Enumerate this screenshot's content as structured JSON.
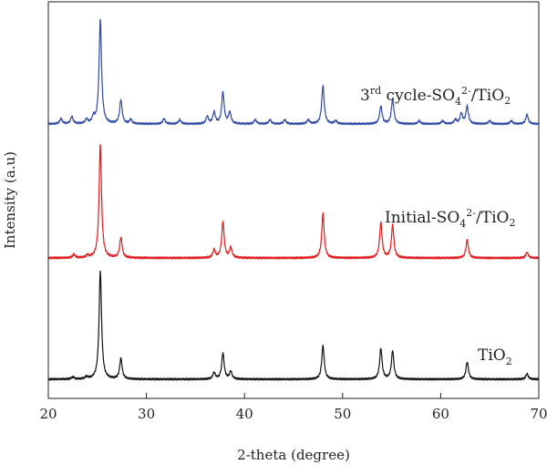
{
  "chart_data": {
    "type": "line",
    "title": "",
    "xlabel": "2-theta (degree)",
    "ylabel": "Intensity (a.u)",
    "xlim": [
      20,
      70
    ],
    "x_ticks": [
      20,
      30,
      40,
      50,
      60,
      70
    ],
    "y_ticks": [],
    "grid": false,
    "legend": "none",
    "peak_half_width_deg": 0.15,
    "series": [
      {
        "key": "third_cycle",
        "label_parts": {
          "pre": "3",
          "sup1": "rd",
          "mid": " cycle-SO",
          "sub1": "4",
          "sup2": "2-",
          "post": "/TiO",
          "sub2": "2"
        },
        "color": "#2e4aa5",
        "baseline": 2.0,
        "peaks": [
          {
            "x": 21.3,
            "h": 0.05
          },
          {
            "x": 22.4,
            "h": 0.07
          },
          {
            "x": 23.9,
            "h": 0.04
          },
          {
            "x": 24.6,
            "h": 0.06
          },
          {
            "x": 25.3,
            "h": 1.0
          },
          {
            "x": 27.4,
            "h": 0.23
          },
          {
            "x": 28.4,
            "h": 0.04
          },
          {
            "x": 31.8,
            "h": 0.05
          },
          {
            "x": 33.4,
            "h": 0.04
          },
          {
            "x": 36.2,
            "h": 0.07
          },
          {
            "x": 36.9,
            "h": 0.11
          },
          {
            "x": 37.8,
            "h": 0.3
          },
          {
            "x": 38.5,
            "h": 0.11
          },
          {
            "x": 41.1,
            "h": 0.04
          },
          {
            "x": 42.6,
            "h": 0.04
          },
          {
            "x": 44.1,
            "h": 0.04
          },
          {
            "x": 46.5,
            "h": 0.04
          },
          {
            "x": 48.0,
            "h": 0.37
          },
          {
            "x": 49.3,
            "h": 0.03
          },
          {
            "x": 53.9,
            "h": 0.17
          },
          {
            "x": 55.1,
            "h": 0.24
          },
          {
            "x": 57.8,
            "h": 0.03
          },
          {
            "x": 60.2,
            "h": 0.03
          },
          {
            "x": 61.5,
            "h": 0.04
          },
          {
            "x": 62.1,
            "h": 0.1
          },
          {
            "x": 62.7,
            "h": 0.17
          },
          {
            "x": 65.0,
            "h": 0.03
          },
          {
            "x": 67.2,
            "h": 0.03
          },
          {
            "x": 68.8,
            "h": 0.09
          }
        ]
      },
      {
        "key": "initial",
        "label_parts": {
          "pre": "Initial-SO",
          "sub1": "4",
          "sup1": "2-",
          "post": "/TiO",
          "sub2": "2"
        },
        "color": "#e31a1c",
        "baseline": 1.0,
        "peaks": [
          {
            "x": 22.6,
            "h": 0.03
          },
          {
            "x": 24.0,
            "h": 0.02
          },
          {
            "x": 25.3,
            "h": 1.0
          },
          {
            "x": 27.4,
            "h": 0.18
          },
          {
            "x": 36.9,
            "h": 0.07
          },
          {
            "x": 37.8,
            "h": 0.32
          },
          {
            "x": 38.6,
            "h": 0.09
          },
          {
            "x": 48.0,
            "h": 0.39
          },
          {
            "x": 53.9,
            "h": 0.31
          },
          {
            "x": 55.1,
            "h": 0.29
          },
          {
            "x": 62.7,
            "h": 0.16
          },
          {
            "x": 68.8,
            "h": 0.05
          }
        ]
      },
      {
        "key": "tio2",
        "label_parts": {
          "pre": "TiO",
          "sub1": "2"
        },
        "color": "#111111",
        "baseline": 0.0,
        "peaks": [
          {
            "x": 22.5,
            "h": 0.02
          },
          {
            "x": 23.9,
            "h": 0.02
          },
          {
            "x": 25.3,
            "h": 1.0
          },
          {
            "x": 27.4,
            "h": 0.19
          },
          {
            "x": 36.9,
            "h": 0.06
          },
          {
            "x": 37.8,
            "h": 0.24
          },
          {
            "x": 38.6,
            "h": 0.07
          },
          {
            "x": 48.0,
            "h": 0.31
          },
          {
            "x": 53.9,
            "h": 0.28
          },
          {
            "x": 55.1,
            "h": 0.26
          },
          {
            "x": 62.7,
            "h": 0.16
          },
          {
            "x": 68.8,
            "h": 0.05
          }
        ]
      }
    ]
  }
}
